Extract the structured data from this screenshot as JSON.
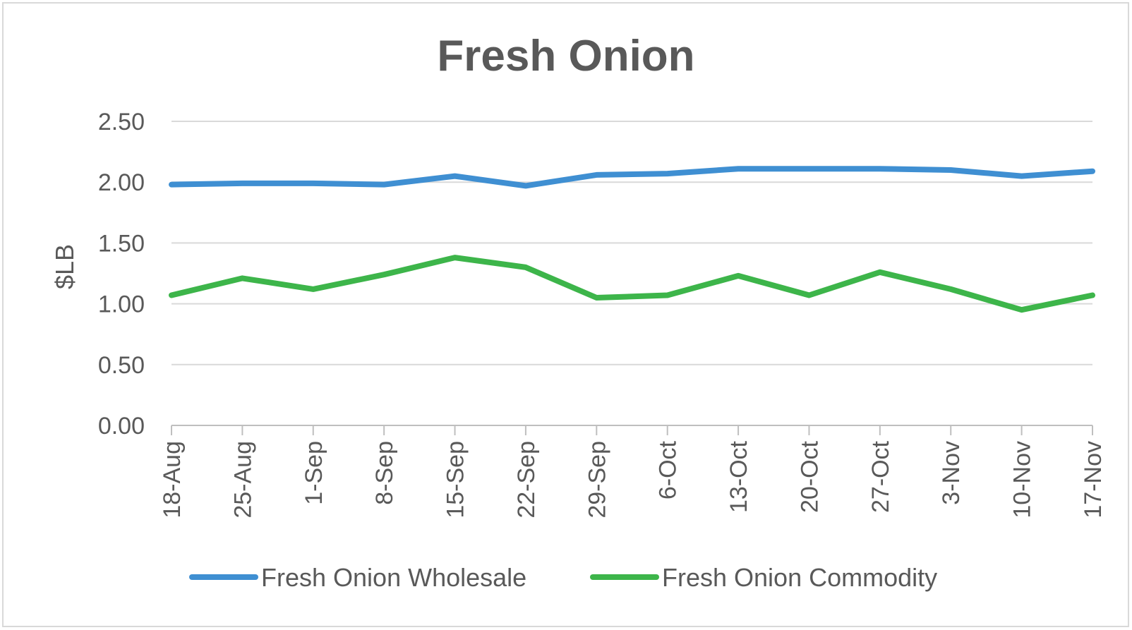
{
  "chart_data": {
    "type": "line",
    "title": "Fresh Onion",
    "xlabel": "",
    "ylabel": "$LB",
    "ylim": [
      0,
      2.5
    ],
    "yticks": [
      "0.00",
      "0.50",
      "1.00",
      "1.50",
      "2.00",
      "2.50"
    ],
    "categories": [
      "18-Aug",
      "25-Aug",
      "1-Sep",
      "8-Sep",
      "15-Sep",
      "22-Sep",
      "29-Sep",
      "6-Oct",
      "13-Oct",
      "20-Oct",
      "27-Oct",
      "3-Nov",
      "10-Nov",
      "17-Nov"
    ],
    "series": [
      {
        "name": "Fresh Onion Wholesale",
        "color": "#3F8FD2",
        "values": [
          1.98,
          1.99,
          1.99,
          1.98,
          2.05,
          1.97,
          2.06,
          2.07,
          2.11,
          2.11,
          2.11,
          2.1,
          2.05,
          2.09
        ]
      },
      {
        "name": "Fresh Onion Commodity",
        "color": "#3DB54A",
        "values": [
          1.07,
          1.21,
          1.12,
          1.24,
          1.38,
          1.3,
          1.05,
          1.07,
          1.23,
          1.07,
          1.26,
          1.12,
          0.95,
          1.07
        ]
      }
    ],
    "grid": true,
    "legend": "bottom"
  }
}
